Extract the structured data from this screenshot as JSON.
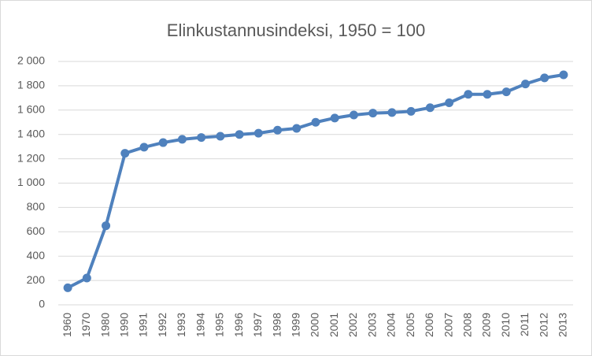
{
  "chart_data": {
    "type": "line",
    "title": "Elinkustannusindeksi, 1950 = 100",
    "categories": [
      "1960",
      "1970",
      "1980",
      "1990",
      "1991",
      "1992",
      "1993",
      "1994",
      "1995",
      "1996",
      "1997",
      "1998",
      "1999",
      "2000",
      "2001",
      "2002",
      "2003",
      "2004",
      "2005",
      "2006",
      "2007",
      "2008",
      "2009",
      "2010",
      "2011",
      "2012",
      "2013"
    ],
    "values": [
      140,
      220,
      650,
      1245,
      1295,
      1333,
      1360,
      1375,
      1385,
      1400,
      1410,
      1435,
      1450,
      1500,
      1535,
      1560,
      1575,
      1580,
      1590,
      1620,
      1660,
      1730,
      1730,
      1750,
      1815,
      1865,
      1890
    ],
    "color": "#4f81bd",
    "ylim": [
      0,
      2000
    ],
    "yticks": [
      0,
      200,
      400,
      600,
      800,
      {
        "value": 1000,
        "label": "1 000"
      },
      {
        "value": 1200,
        "label": "1 200"
      },
      {
        "value": 1400,
        "label": "1 400"
      },
      {
        "value": 1600,
        "label": "1 600"
      },
      {
        "value": 1800,
        "label": "1 800"
      },
      {
        "value": 2000,
        "label": "2 000"
      }
    ],
    "grid": true
  }
}
